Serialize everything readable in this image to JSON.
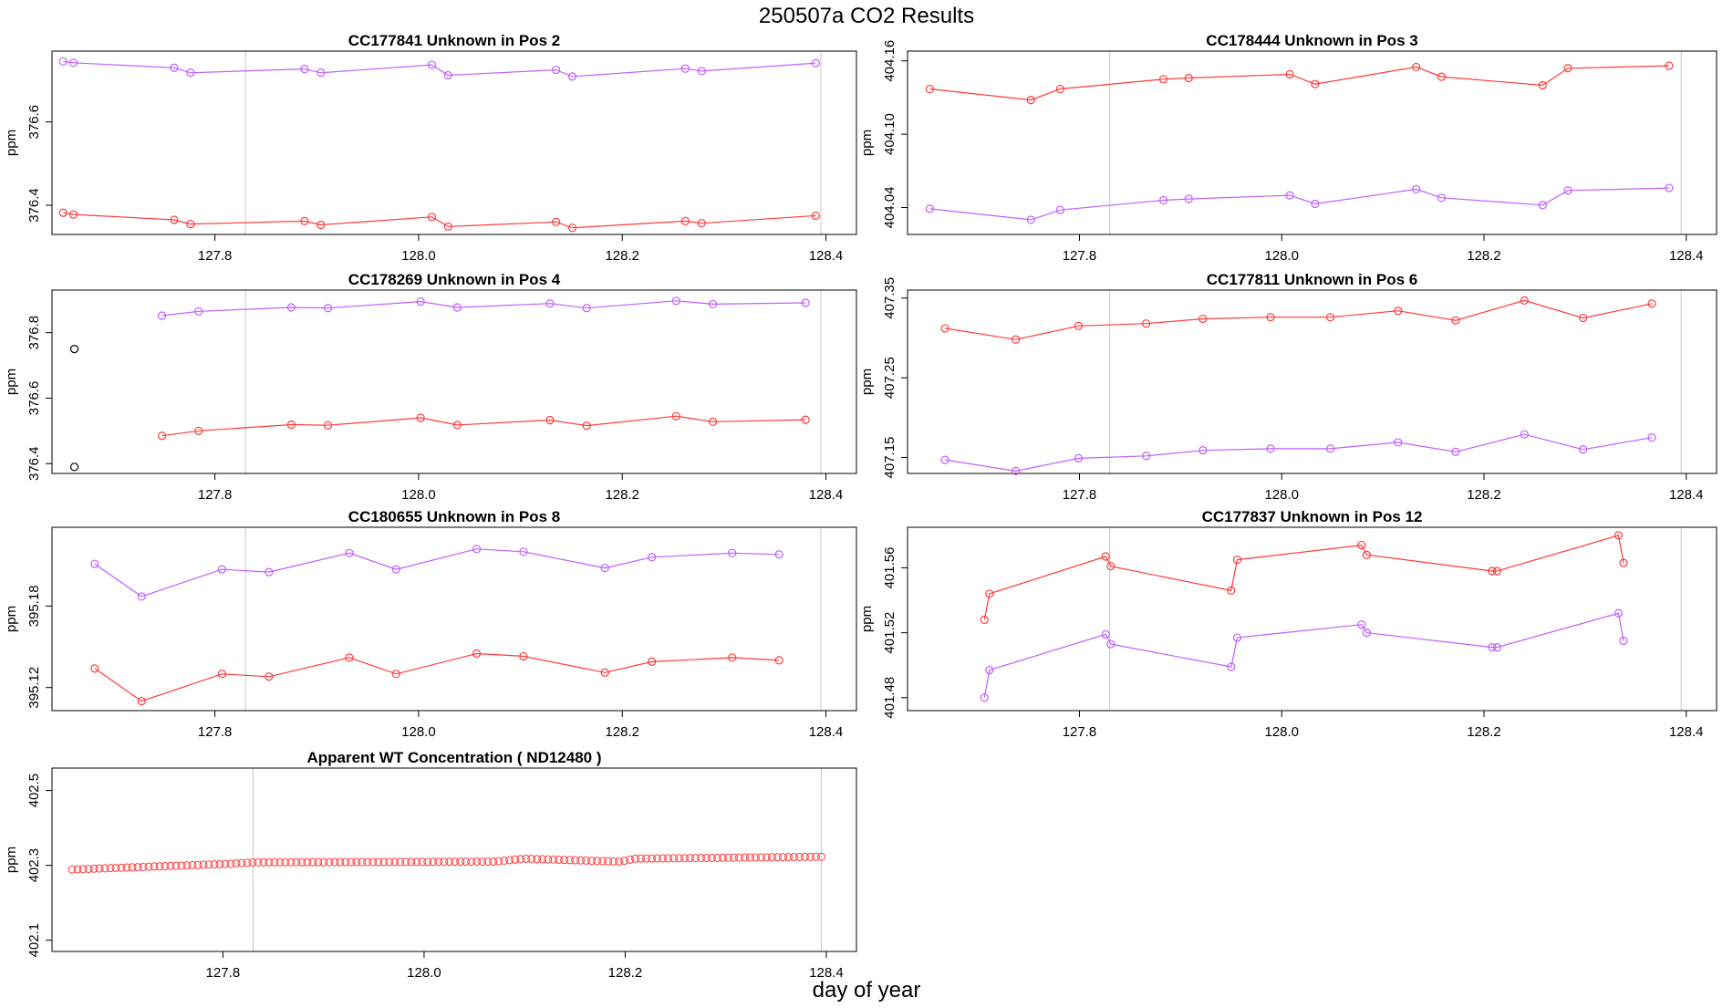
{
  "figure": {
    "title": "250507a  CO2 Results",
    "xlabel": "day of year"
  },
  "colors": {
    "red": "#ff3b3b",
    "purple": "#bf5fff",
    "gridline": "#c8c8c8",
    "black": "#000000"
  },
  "chart_data": [
    {
      "id": "p1",
      "type": "line",
      "title": "CC177841    Unknown in Pos 2",
      "ylabel": "ppm",
      "xlim": [
        127.64,
        128.43
      ],
      "ylim": [
        376.33,
        376.77
      ],
      "xticks": [
        127.8,
        128.0,
        128.2,
        128.4
      ],
      "xtick_labels": [
        "127.8",
        "128.0",
        "128.2",
        "128.4"
      ],
      "yticks": [
        376.4,
        376.6
      ],
      "ytick_labels": [
        "376.4",
        "376.6"
      ],
      "vlines": [
        127.83,
        128.395
      ],
      "series": [
        {
          "name": "purple",
          "color": "purple",
          "values": [
            [
              127.651,
              376.745
            ],
            [
              127.661,
              376.742
            ],
            [
              127.76,
              376.73
            ],
            [
              127.776,
              376.718
            ],
            [
              127.888,
              376.727
            ],
            [
              127.904,
              376.718
            ],
            [
              128.013,
              376.737
            ],
            [
              128.029,
              376.712
            ],
            [
              128.135,
              376.725
            ],
            [
              128.151,
              376.709
            ],
            [
              128.262,
              376.728
            ],
            [
              128.278,
              376.722
            ],
            [
              128.39,
              376.741
            ]
          ]
        },
        {
          "name": "red",
          "color": "red",
          "values": [
            [
              127.651,
              376.382
            ],
            [
              127.661,
              376.378
            ],
            [
              127.76,
              376.365
            ],
            [
              127.776,
              376.355
            ],
            [
              127.888,
              376.362
            ],
            [
              127.904,
              376.353
            ],
            [
              128.013,
              376.372
            ],
            [
              128.029,
              376.349
            ],
            [
              128.135,
              376.36
            ],
            [
              128.151,
              376.346
            ],
            [
              128.262,
              376.362
            ],
            [
              128.278,
              376.357
            ],
            [
              128.39,
              376.375
            ]
          ]
        }
      ]
    },
    {
      "id": "p2",
      "type": "line",
      "title": "CC178444    Unknown in Pos 3",
      "ylabel": "ppm",
      "xlim": [
        127.63,
        128.43
      ],
      "ylim": [
        404.018,
        404.168
      ],
      "xticks": [
        127.8,
        128.0,
        128.2,
        128.4
      ],
      "xtick_labels": [
        "127.8",
        "128.0",
        "128.2",
        "128.4"
      ],
      "yticks": [
        404.04,
        404.1,
        404.16
      ],
      "ytick_labels": [
        "404.04",
        "404.10",
        "404.16"
      ],
      "vlines": [
        127.83,
        128.395
      ],
      "series": [
        {
          "name": "red",
          "color": "red",
          "values": [
            [
              127.652,
              404.137
            ],
            [
              127.752,
              404.128
            ],
            [
              127.781,
              404.137
            ],
            [
              127.883,
              404.145
            ],
            [
              127.908,
              404.146
            ],
            [
              128.008,
              404.149
            ],
            [
              128.033,
              404.141
            ],
            [
              128.133,
              404.155
            ],
            [
              128.158,
              404.147
            ],
            [
              128.258,
              404.14
            ],
            [
              128.283,
              404.154
            ],
            [
              128.383,
              404.156
            ]
          ]
        },
        {
          "name": "purple",
          "color": "purple",
          "values": [
            [
              127.652,
              404.039
            ],
            [
              127.752,
              404.03
            ],
            [
              127.781,
              404.038
            ],
            [
              127.883,
              404.046
            ],
            [
              127.908,
              404.047
            ],
            [
              128.008,
              404.05
            ],
            [
              128.033,
              404.043
            ],
            [
              128.133,
              404.055
            ],
            [
              128.158,
              404.048
            ],
            [
              128.258,
              404.042
            ],
            [
              128.283,
              404.054
            ],
            [
              128.383,
              404.056
            ]
          ]
        }
      ]
    },
    {
      "id": "p3",
      "type": "line",
      "title": "CC178269    Unknown in Pos 4",
      "ylabel": "ppm",
      "xlim": [
        127.64,
        128.43
      ],
      "ylim": [
        376.37,
        376.93
      ],
      "xticks": [
        127.8,
        128.0,
        128.2,
        128.4
      ],
      "xtick_labels": [
        "127.8",
        "128.0",
        "128.2",
        "128.4"
      ],
      "yticks": [
        376.4,
        376.6,
        376.8
      ],
      "ytick_labels": [
        "376.4",
        "376.6",
        "376.8"
      ],
      "vlines": [
        127.83,
        128.395
      ],
      "outliers": [
        {
          "x": 127.662,
          "y": 376.75,
          "color": "black"
        },
        {
          "x": 127.662,
          "y": 376.39,
          "color": "black"
        }
      ],
      "series": [
        {
          "name": "purple",
          "color": "purple",
          "values": [
            [
              127.748,
              376.852
            ],
            [
              127.784,
              376.865
            ],
            [
              127.875,
              376.877
            ],
            [
              127.911,
              376.875
            ],
            [
              128.002,
              376.895
            ],
            [
              128.038,
              376.877
            ],
            [
              128.129,
              376.889
            ],
            [
              128.165,
              376.875
            ],
            [
              128.253,
              376.897
            ],
            [
              128.289,
              376.887
            ],
            [
              128.38,
              376.891
            ]
          ]
        },
        {
          "name": "red",
          "color": "red",
          "values": [
            [
              127.748,
              376.485
            ],
            [
              127.784,
              376.5
            ],
            [
              127.875,
              376.519
            ],
            [
              127.911,
              376.517
            ],
            [
              128.002,
              376.54
            ],
            [
              128.038,
              376.518
            ],
            [
              128.129,
              376.533
            ],
            [
              128.165,
              376.516
            ],
            [
              128.253,
              376.545
            ],
            [
              128.289,
              376.528
            ],
            [
              128.38,
              376.534
            ]
          ]
        }
      ]
    },
    {
      "id": "p4",
      "type": "line",
      "title": "CC177811    Unknown in Pos 6",
      "ylabel": "ppm",
      "xlim": [
        127.63,
        128.43
      ],
      "ylim": [
        407.13,
        407.36
      ],
      "xticks": [
        127.8,
        128.0,
        128.2,
        128.4
      ],
      "xtick_labels": [
        "127.8",
        "128.0",
        "128.2",
        "128.4"
      ],
      "yticks": [
        407.15,
        407.25,
        407.35
      ],
      "ytick_labels": [
        "407.15",
        "407.25",
        "407.35"
      ],
      "vlines": [
        127.83,
        128.395
      ],
      "series": [
        {
          "name": "red",
          "color": "red",
          "values": [
            [
              127.667,
              407.312
            ],
            [
              127.737,
              407.298
            ],
            [
              127.799,
              407.315
            ],
            [
              127.866,
              407.318
            ],
            [
              127.922,
              407.324
            ],
            [
              127.989,
              407.326
            ],
            [
              128.048,
              407.326
            ],
            [
              128.115,
              407.334
            ],
            [
              128.172,
              407.322
            ],
            [
              128.24,
              407.347
            ],
            [
              128.298,
              407.325
            ],
            [
              128.366,
              407.343
            ]
          ]
        },
        {
          "name": "purple",
          "color": "purple",
          "values": [
            [
              127.667,
              407.147
            ],
            [
              127.737,
              407.133
            ],
            [
              127.799,
              407.149
            ],
            [
              127.866,
              407.152
            ],
            [
              127.922,
              407.159
            ],
            [
              127.989,
              407.161
            ],
            [
              128.048,
              407.161
            ],
            [
              128.115,
              407.169
            ],
            [
              128.172,
              407.157
            ],
            [
              128.24,
              407.179
            ],
            [
              128.298,
              407.16
            ],
            [
              128.366,
              407.175
            ]
          ]
        }
      ]
    },
    {
      "id": "p5",
      "type": "line",
      "title": "CC180655    Unknown in Pos 8",
      "ylabel": "ppm",
      "xlim": [
        127.64,
        128.43
      ],
      "ylim": [
        395.103,
        395.238
      ],
      "xticks": [
        127.8,
        128.0,
        128.2,
        128.4
      ],
      "xtick_labels": [
        "127.8",
        "128.0",
        "128.2",
        "128.4"
      ],
      "yticks": [
        395.12,
        395.18
      ],
      "ytick_labels": [
        "395.12",
        "395.18"
      ],
      "vlines": [
        127.83,
        128.395
      ],
      "series": [
        {
          "name": "purple",
          "color": "purple",
          "values": [
            [
              127.682,
              395.211
            ],
            [
              127.728,
              395.187
            ],
            [
              127.807,
              395.207
            ],
            [
              127.853,
              395.205
            ],
            [
              127.932,
              395.219
            ],
            [
              127.978,
              395.207
            ],
            [
              128.057,
              395.222
            ],
            [
              128.103,
              395.22
            ],
            [
              128.183,
              395.208
            ],
            [
              128.229,
              395.216
            ],
            [
              128.308,
              395.219
            ],
            [
              128.354,
              395.218
            ]
          ]
        },
        {
          "name": "red",
          "color": "red",
          "values": [
            [
              127.682,
              395.134
            ],
            [
              127.728,
              395.11
            ],
            [
              127.807,
              395.13
            ],
            [
              127.853,
              395.128
            ],
            [
              127.932,
              395.142
            ],
            [
              127.978,
              395.13
            ],
            [
              128.057,
              395.145
            ],
            [
              128.103,
              395.143
            ],
            [
              128.183,
              395.131
            ],
            [
              128.229,
              395.139
            ],
            [
              128.308,
              395.142
            ],
            [
              128.354,
              395.14
            ]
          ]
        }
      ]
    },
    {
      "id": "p6",
      "type": "line",
      "title": "CC177837    Unknown in Pos 12",
      "ylabel": "ppm",
      "xlim": [
        127.63,
        128.43
      ],
      "ylim": [
        401.472,
        401.585
      ],
      "xticks": [
        127.8,
        128.0,
        128.2,
        128.4
      ],
      "xtick_labels": [
        "127.8",
        "128.0",
        "128.2",
        "128.4"
      ],
      "yticks": [
        401.48,
        401.52,
        401.56
      ],
      "ytick_labels": [
        "401.48",
        "401.52",
        "401.56"
      ],
      "vlines": [
        127.83,
        128.395
      ],
      "series": [
        {
          "name": "red",
          "color": "red",
          "values": [
            [
              127.706,
              401.528
            ],
            [
              127.711,
              401.544
            ],
            [
              127.826,
              401.567
            ],
            [
              127.831,
              401.561
            ],
            [
              127.95,
              401.546
            ],
            [
              127.956,
              401.565
            ],
            [
              128.079,
              401.574
            ],
            [
              128.084,
              401.568
            ],
            [
              128.208,
              401.558
            ],
            [
              128.213,
              401.558
            ],
            [
              128.333,
              401.58
            ],
            [
              128.338,
              401.563
            ]
          ]
        },
        {
          "name": "purple",
          "color": "purple",
          "values": [
            [
              127.706,
              401.48
            ],
            [
              127.711,
              401.497
            ],
            [
              127.826,
              401.519
            ],
            [
              127.831,
              401.513
            ],
            [
              127.95,
              401.499
            ],
            [
              127.956,
              401.517
            ],
            [
              128.079,
              401.525
            ],
            [
              128.084,
              401.52
            ],
            [
              128.208,
              401.511
            ],
            [
              128.213,
              401.511
            ],
            [
              128.333,
              401.532
            ],
            [
              128.338,
              401.515
            ]
          ]
        }
      ]
    },
    {
      "id": "p7",
      "type": "scatter",
      "title": "Apparent WT Concentration ( ND12480 )",
      "ylabel": "ppm",
      "xlim": [
        127.63,
        128.43
      ],
      "ylim": [
        402.07,
        402.56
      ],
      "xticks": [
        127.8,
        128.0,
        128.2,
        128.4
      ],
      "xtick_labels": [
        "127.8",
        "128.0",
        "128.2",
        "128.4"
      ],
      "yticks": [
        402.1,
        402.3,
        402.5
      ],
      "ytick_labels": [
        "402.1",
        "402.3",
        "402.5"
      ],
      "vlines": [
        127.83,
        128.395
      ],
      "series": [
        {
          "name": "WT",
          "color": "red",
          "values": [
            [
              127.65,
              402.289
            ],
            [
              127.805,
              402.304
            ],
            [
              127.83,
              402.308
            ],
            [
              128.07,
              402.31
            ],
            [
              128.1,
              402.318
            ],
            [
              128.195,
              402.31
            ],
            [
              128.21,
              402.318
            ],
            [
              128.395,
              402.323
            ]
          ]
        }
      ]
    }
  ]
}
